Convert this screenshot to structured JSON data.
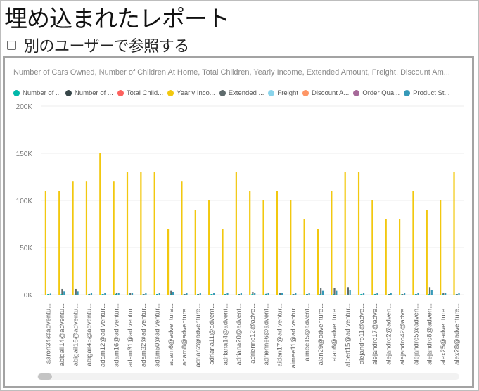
{
  "page": {
    "title": "埋め込まれたレポート",
    "view_as_label": "別のユーザーで参照する",
    "view_as_checked": false
  },
  "chart": {
    "title": "Number of Cars Owned, Number of Children At Home, Total Children, Yearly Income, Extended Amount, Freight, Discount Am...",
    "legend": [
      {
        "label": "Number of ...",
        "color": "#01B8AA"
      },
      {
        "label": "Number of ...",
        "color": "#374649"
      },
      {
        "label": "Total Child...",
        "color": "#FD625E"
      },
      {
        "label": "Yearly Inco...",
        "color": "#F2C80F"
      },
      {
        "label": "Extended ...",
        "color": "#5F6B6D"
      },
      {
        "label": "Freight",
        "color": "#8AD4EB"
      },
      {
        "label": "Discount A...",
        "color": "#FE9666"
      },
      {
        "label": "Order Qua...",
        "color": "#A66999"
      },
      {
        "label": "Product St...",
        "color": "#3599B8"
      }
    ]
  },
  "chart_data": {
    "type": "bar",
    "title": "Number of Cars Owned, Number of Children At Home, Total Children, Yearly Income, Extended Amount, Freight, Discount Am...",
    "yticks": [
      "200K",
      "150K",
      "100K",
      "50K",
      "0K"
    ],
    "ylim": [
      0,
      200000
    ],
    "grid": true,
    "legend_position": "top-left",
    "categories": [
      "aaron34@adventu...",
      "abigail14@adventu...",
      "abigail16@adventu...",
      "abigail45@adventu...",
      "adam12@ad ventur...",
      "adam16@ad ventur...",
      "adam31@ad ventur...",
      "adam32@ad ventur...",
      "adam50@ad ventur...",
      "adam6@adventure...",
      "adam8@adventure...",
      "adrian2@adventure...",
      "adriana11@advent...",
      "adriana14@advent...",
      "adriana20@advent...",
      "adrienne12@adve...",
      "adrienne6@advent...",
      "aidan17@ad ventur...",
      "aimee11@ad ventur...",
      "aimee15@advent...",
      "alan29@adventure...",
      "alan6@adventure...",
      "albert15@ad ventur...",
      "alejandro11@adve...",
      "alejandro17@adve...",
      "alejandro2@adven...",
      "alejandro42@adve...",
      "alejandro5@adven...",
      "alejandro8@adven...",
      "alex25@adventure...",
      "alex28@adventure..."
    ],
    "series": [
      {
        "name": "Yearly Inco...",
        "values": [
          110000,
          110000,
          120000,
          120000,
          150000,
          120000,
          130000,
          130000,
          130000,
          70000,
          120000,
          90000,
          100000,
          70000,
          130000,
          110000,
          100000,
          110000,
          100000,
          80000,
          70000,
          110000,
          130000,
          130000,
          100000,
          80000,
          80000,
          110000,
          90000,
          100000,
          130000
        ]
      },
      {
        "name": "Extended ...",
        "values": [
          400,
          6000,
          6000,
          800,
          600,
          1500,
          2000,
          600,
          600,
          4000,
          600,
          600,
          600,
          600,
          600,
          3000,
          1000,
          2000,
          600,
          600,
          7000,
          7000,
          8000,
          800,
          800,
          600,
          600,
          600,
          8000,
          2000,
          700
        ]
      },
      {
        "name": "Product St...",
        "values": [
          1200,
          3500,
          3500,
          1500,
          1500,
          1500,
          1500,
          1500,
          1500,
          3000,
          1500,
          1500,
          1500,
          1500,
          1500,
          1500,
          1500,
          1500,
          1500,
          1500,
          4000,
          4000,
          5000,
          1500,
          1500,
          1500,
          1500,
          1500,
          5000,
          1500,
          1500
        ]
      }
    ]
  }
}
